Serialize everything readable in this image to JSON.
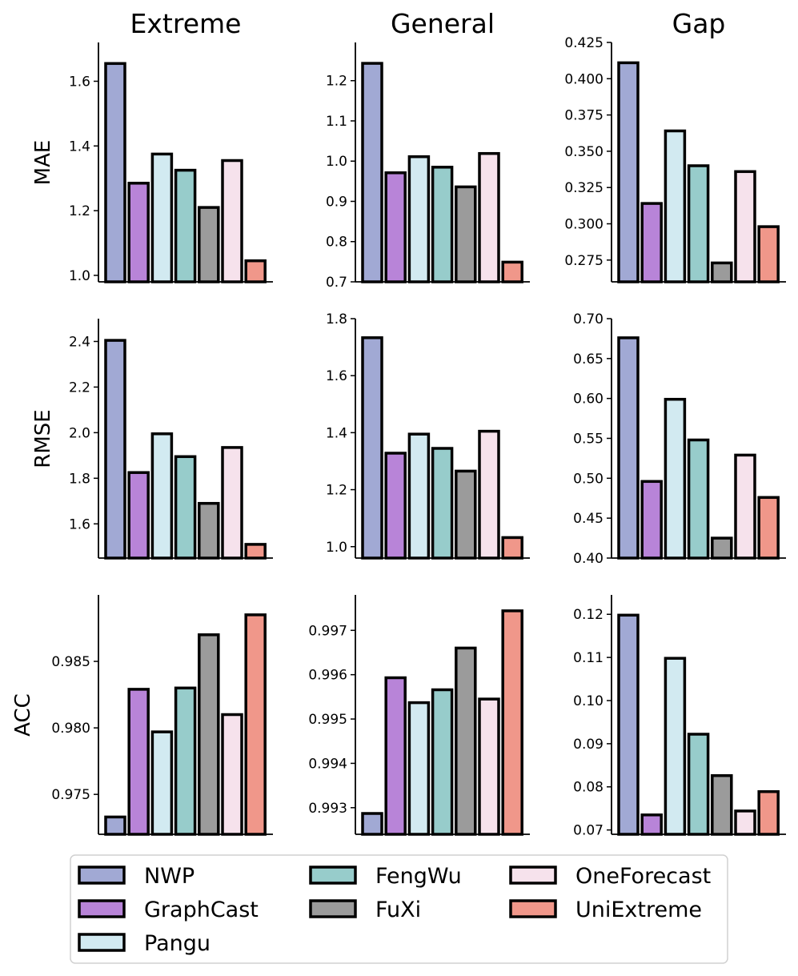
{
  "chart_data": {
    "type": "bar",
    "columns": [
      "Extreme",
      "General",
      "Gap"
    ],
    "rows": [
      "MAE",
      "RMSE",
      "ACC"
    ],
    "categories": [
      "NWP",
      "GraphCast",
      "Pangu",
      "FengWu",
      "FuXi",
      "OneForecast",
      "UniExtreme"
    ],
    "colors": [
      "#a1a9d4",
      "#b884d8",
      "#d2eaf1",
      "#97cccb",
      "#9b9b9b",
      "#f6e2ec",
      "#f0978a"
    ],
    "legend": {
      "placement": "bottom",
      "columns": 3
    },
    "panels": [
      {
        "name": "extreme-mae",
        "row": "MAE",
        "column": "Extreme",
        "ylim": [
          0.98,
          1.72
        ],
        "yticks": [
          1.0,
          1.2,
          1.4,
          1.6
        ],
        "tick_labels": [
          "1.0",
          "1.2",
          "1.4",
          "1.6"
        ],
        "values": [
          1.655,
          1.285,
          1.375,
          1.325,
          1.21,
          1.355,
          1.045
        ]
      },
      {
        "name": "general-mae",
        "row": "MAE",
        "column": "General",
        "ylim": [
          0.7,
          1.295
        ],
        "yticks": [
          0.7,
          0.8,
          0.9,
          1.0,
          1.1,
          1.2
        ],
        "tick_labels": [
          "0.7",
          "0.8",
          "0.9",
          "1.0",
          "1.1",
          "1.2"
        ],
        "values": [
          1.243,
          0.971,
          1.011,
          0.985,
          0.936,
          1.019,
          0.749
        ]
      },
      {
        "name": "gap-mae",
        "row": "MAE",
        "column": "Gap",
        "ylim": [
          0.26,
          0.425
        ],
        "yticks": [
          0.275,
          0.3,
          0.325,
          0.35,
          0.375,
          0.4,
          0.425
        ],
        "tick_labels": [
          "0.275",
          "0.300",
          "0.325",
          "0.350",
          "0.375",
          "0.400",
          "0.425"
        ],
        "values": [
          0.411,
          0.314,
          0.364,
          0.34,
          0.273,
          0.336,
          0.298
        ]
      },
      {
        "name": "extreme-rmse",
        "row": "RMSE",
        "column": "Extreme",
        "ylim": [
          1.45,
          2.5
        ],
        "yticks": [
          1.6,
          1.8,
          2.0,
          2.2,
          2.4
        ],
        "tick_labels": [
          "1.6",
          "1.8",
          "2.0",
          "2.2",
          "2.4"
        ],
        "values": [
          2.405,
          1.825,
          1.995,
          1.895,
          1.69,
          1.935,
          1.51
        ]
      },
      {
        "name": "general-rmse",
        "row": "RMSE",
        "column": "General",
        "ylim": [
          0.96,
          1.8
        ],
        "yticks": [
          1.0,
          1.2,
          1.4,
          1.6,
          1.8
        ],
        "tick_labels": [
          "1.0",
          "1.2",
          "1.4",
          "1.6",
          "1.8"
        ],
        "values": [
          1.733,
          1.328,
          1.395,
          1.345,
          1.265,
          1.405,
          1.032
        ]
      },
      {
        "name": "gap-rmse",
        "row": "RMSE",
        "column": "Gap",
        "ylim": [
          0.4,
          0.7
        ],
        "yticks": [
          0.4,
          0.45,
          0.5,
          0.55,
          0.6,
          0.65,
          0.7
        ],
        "tick_labels": [
          "0.40",
          "0.45",
          "0.50",
          "0.55",
          "0.60",
          "0.65",
          "0.70"
        ],
        "values": [
          0.676,
          0.496,
          0.599,
          0.548,
          0.425,
          0.529,
          0.476
        ]
      },
      {
        "name": "extreme-acc",
        "row": "ACC",
        "column": "Extreme",
        "ylim": [
          0.972,
          0.99
        ],
        "yticks": [
          0.975,
          0.98,
          0.985
        ],
        "tick_labels": [
          "0.975",
          "0.980",
          "0.985"
        ],
        "values": [
          0.9733,
          0.9829,
          0.9797,
          0.983,
          0.987,
          0.981,
          0.9885
        ]
      },
      {
        "name": "general-acc",
        "row": "ACC",
        "column": "General",
        "ylim": [
          0.9924,
          0.9978
        ],
        "yticks": [
          0.993,
          0.994,
          0.995,
          0.996,
          0.997
        ],
        "tick_labels": [
          "0.993",
          "0.994",
          "0.995",
          "0.996",
          "0.997"
        ],
        "values": [
          0.99287,
          0.99593,
          0.99537,
          0.99566,
          0.9966,
          0.99545,
          0.99744
        ]
      },
      {
        "name": "gap-acc",
        "row": "ACC",
        "column": "Gap",
        "ylim": [
          0.069,
          0.1245
        ],
        "yticks": [
          0.07,
          0.08,
          0.09,
          0.1,
          0.11,
          0.12
        ],
        "tick_labels": [
          "0.07",
          "0.08",
          "0.09",
          "0.10",
          "0.11",
          "0.12"
        ],
        "values": [
          0.1198,
          0.0735,
          0.1098,
          0.0922,
          0.0826,
          0.0744,
          0.0789
        ]
      }
    ]
  }
}
